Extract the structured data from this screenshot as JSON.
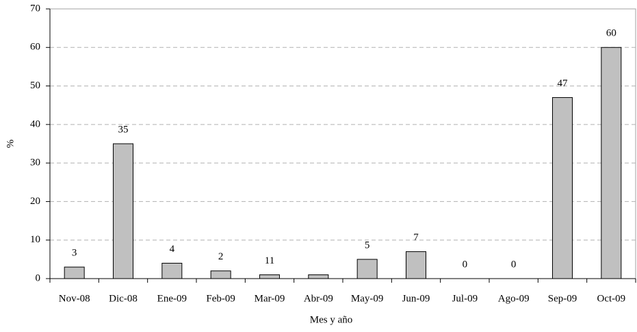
{
  "chart_data": {
    "type": "bar",
    "categories": [
      "Nov-08",
      "Dic-08",
      "Ene-09",
      "Feb-09",
      "Mar-09",
      "Abr-09",
      "May-09",
      "Jun-09",
      "Jul-09",
      "Ago-09",
      "Sep-09",
      "Oct-09"
    ],
    "values": [
      3,
      35,
      4,
      2,
      1,
      1,
      5,
      7,
      0,
      0,
      47,
      60
    ],
    "value_labels": [
      "3",
      "35",
      "4",
      "2",
      null,
      null,
      "5",
      "7",
      "0",
      "0",
      "47",
      "60"
    ],
    "annotations": [
      "11"
    ],
    "color": "#c0c0c0",
    "ylim": [
      0,
      70
    ],
    "yticks": [
      0,
      10,
      20,
      30,
      40,
      50,
      60,
      70
    ],
    "grid": true,
    "x_label": "Mes y año",
    "y_label": "%"
  }
}
